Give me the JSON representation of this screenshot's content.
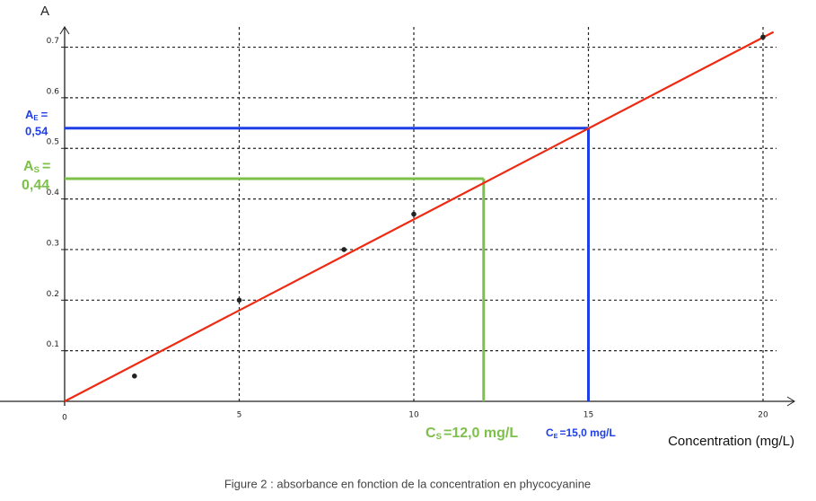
{
  "chart_data": {
    "type": "scatter",
    "y_axis_label": "A",
    "x_axis_label": "Concentration (mg/L)",
    "caption": "Figure 2 : absorbance en fonction de la concentration en phycocyanine",
    "xlim": [
      0,
      20.9
    ],
    "ylim": [
      0,
      0.74
    ],
    "xticks": [
      0,
      5,
      10,
      15,
      20
    ],
    "yticks": [
      0.1,
      0.2,
      0.3,
      0.4,
      0.5,
      0.6,
      0.7
    ],
    "grid": true,
    "points": {
      "color": "#222222",
      "x": [
        2,
        5,
        8,
        10,
        20
      ],
      "y": [
        0.05,
        0.2,
        0.3,
        0.37,
        0.72
      ]
    },
    "fit_line": {
      "color": "#ee2a12",
      "x": [
        0,
        20.3
      ],
      "y": [
        0,
        0.73
      ]
    },
    "annotations": [
      {
        "color": "#1f3fe6",
        "x": 15,
        "y": 0.54,
        "y_label": {
          "name": "A",
          "sub": "E",
          "eq": "=",
          "value": "0,54"
        },
        "x_label": {
          "name": "C",
          "sub": "E",
          "rest": "=15,0 mg/L"
        }
      },
      {
        "color": "#7dc04a",
        "x": 12,
        "y": 0.44,
        "y_label": {
          "name": "A",
          "sub": "S",
          "eq": "=",
          "value": "0,44"
        },
        "x_label": {
          "name": "C",
          "sub": "S",
          "rest": "=12,0 mg/L"
        }
      }
    ]
  }
}
